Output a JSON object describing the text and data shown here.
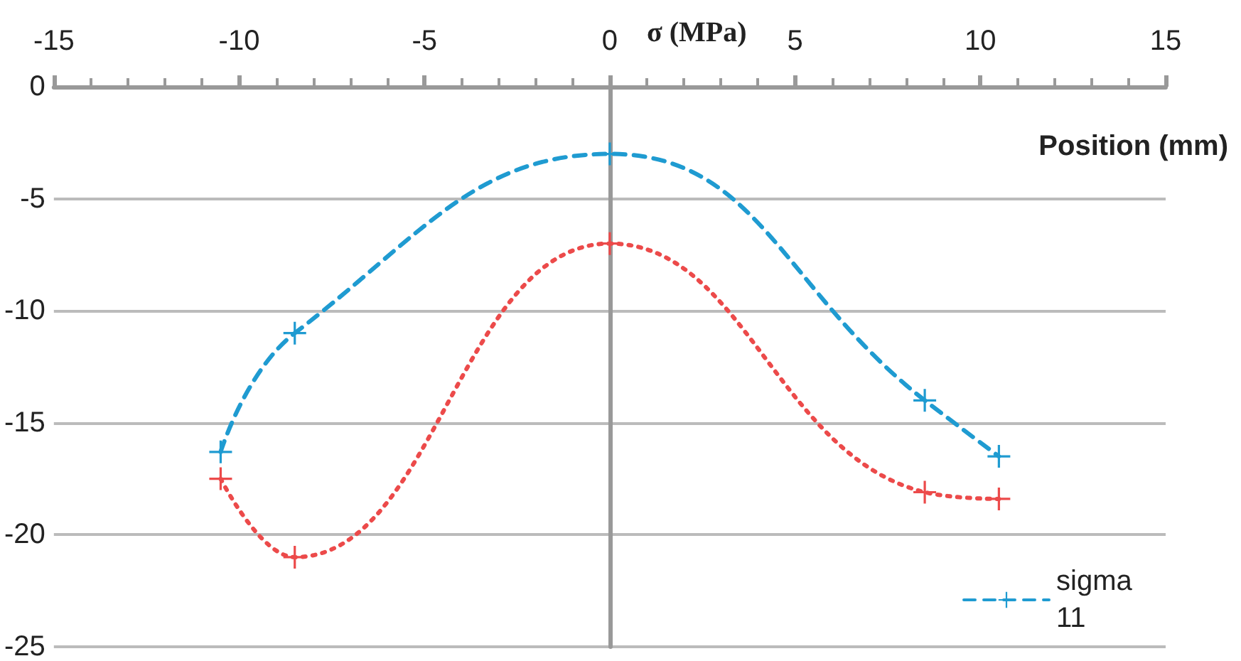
{
  "chart_data": {
    "type": "line",
    "xlabel": "Position (mm)",
    "ylabel": "σ (MPa)",
    "xlim": [
      -15,
      15
    ],
    "xticks": [
      -15,
      -10,
      -5,
      0,
      5,
      10,
      15
    ],
    "ylim": [
      -25,
      0
    ],
    "yticks": [
      -25,
      -20,
      -15,
      -10,
      -5,
      0
    ],
    "grid": "y",
    "legend": "bottom right",
    "series": [
      {
        "name": "sigma 11",
        "color": "#1f9bd1",
        "x": [
          -10.5,
          -8.5,
          0,
          8.5,
          10.5
        ],
        "values": [
          -16.3,
          -11.0,
          -3.0,
          -14.0,
          -16.5
        ],
        "marker": "cross",
        "line_style": "dashed"
      },
      {
        "color": "#ec4a4a",
        "x": [
          -10.5,
          -8.5,
          0,
          8.5,
          10.5
        ],
        "values": [
          -17.5,
          -21.0,
          -7.0,
          -18.1,
          -18.4
        ],
        "marker": "cross",
        "line_style": "dotted"
      }
    ]
  }
}
